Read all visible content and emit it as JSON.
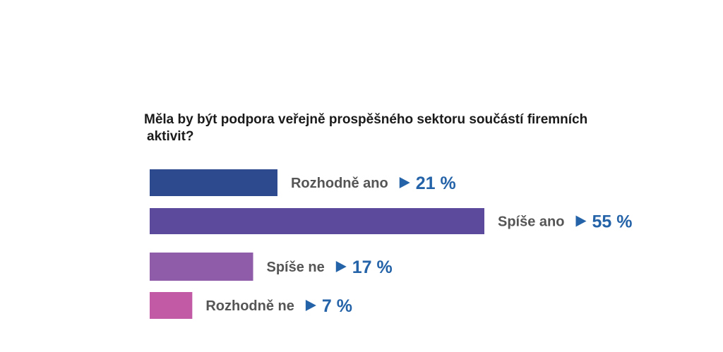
{
  "chart_data": {
    "type": "bar",
    "orientation": "horizontal",
    "title_line1": "Měla by být podpora veřejně prospěšného sektoru součástí firemních",
    "title_line2": "aktivit?",
    "categories": [
      "Rozhodně ano",
      "Spíše ano",
      "Spíše ne",
      "Rozhodně ne"
    ],
    "values": [
      21,
      55,
      17,
      7
    ],
    "value_labels": [
      "21 %",
      "55 %",
      "17 %",
      "7 %"
    ],
    "unit": "%",
    "xlim": [
      0,
      55
    ],
    "colors": [
      "#2e4a8e",
      "#5c4a9c",
      "#8e5ca8",
      "#c25aa6"
    ],
    "label_color": "#555555",
    "value_color": "#2563a8",
    "marker_icon": "triangle-right-icon",
    "grid": false,
    "legend": "none"
  }
}
